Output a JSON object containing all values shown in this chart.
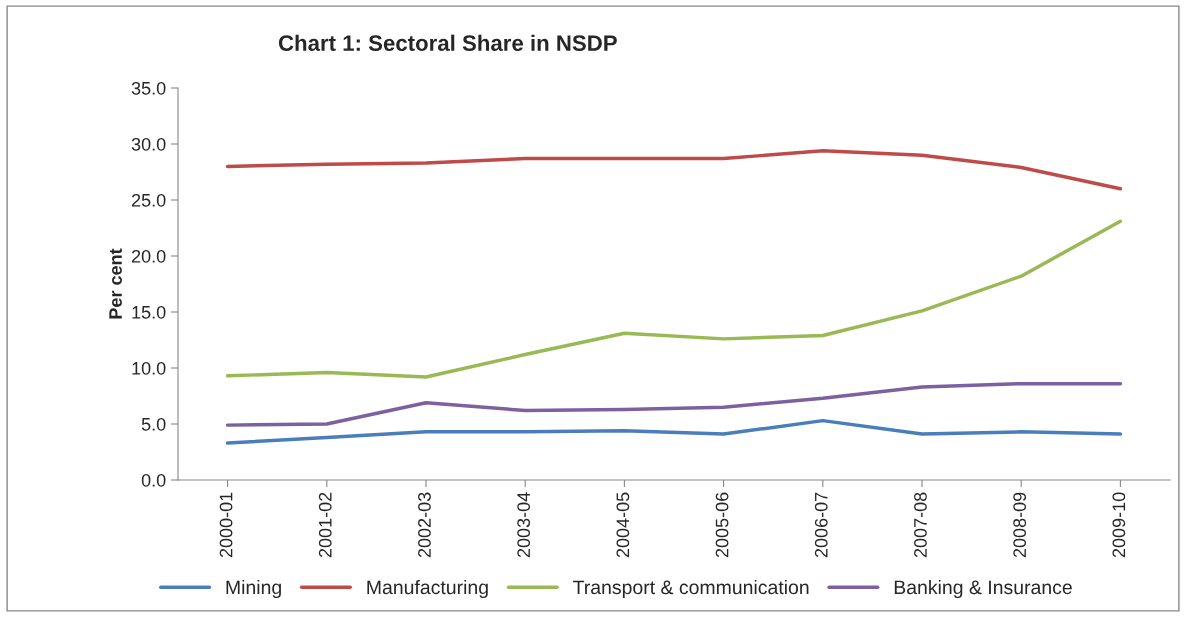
{
  "chart_data": {
    "type": "line",
    "title": "Chart 1: Sectoral Share in NSDP",
    "ylabel": "Per cent",
    "categories": [
      "2000-01",
      "2001-02",
      "2002-03",
      "2003-04",
      "2004-05",
      "2005-06",
      "2006-07",
      "2007-08",
      "2008-09",
      "2009-10"
    ],
    "series": [
      {
        "name": "Mining",
        "color": "#4a7ebb",
        "values": [
          3.3,
          3.8,
          4.3,
          4.3,
          4.4,
          4.1,
          5.3,
          4.1,
          4.3,
          4.1
        ]
      },
      {
        "name": "Manufacturing",
        "color": "#be4b48",
        "values": [
          28.0,
          28.2,
          28.3,
          28.7,
          28.7,
          28.7,
          29.4,
          29.0,
          27.9,
          26.0
        ]
      },
      {
        "name": "Transport & communication",
        "color": "#98b954",
        "values": [
          9.3,
          9.6,
          9.2,
          11.2,
          13.1,
          12.6,
          12.9,
          15.1,
          18.2,
          23.1
        ]
      },
      {
        "name": "Banking & Insurance",
        "color": "#7d60a0",
        "values": [
          4.9,
          5.0,
          6.9,
          6.2,
          6.3,
          6.5,
          7.3,
          8.3,
          8.6,
          8.6
        ]
      }
    ],
    "ylim": [
      0,
      35
    ],
    "yticks": [
      {
        "value": 0,
        "label": "0.0"
      },
      {
        "value": 5,
        "label": "5.0"
      },
      {
        "value": 10,
        "label": "10.0"
      },
      {
        "value": 15,
        "label": "15.0"
      },
      {
        "value": 20,
        "label": "20.0"
      },
      {
        "value": 25,
        "label": "25.0"
      },
      {
        "value": 30,
        "label": "30.0"
      },
      {
        "value": 35,
        "label": "35.0"
      }
    ],
    "grid": false,
    "legend": "bottom",
    "marker": "none",
    "line_style": "solid"
  }
}
